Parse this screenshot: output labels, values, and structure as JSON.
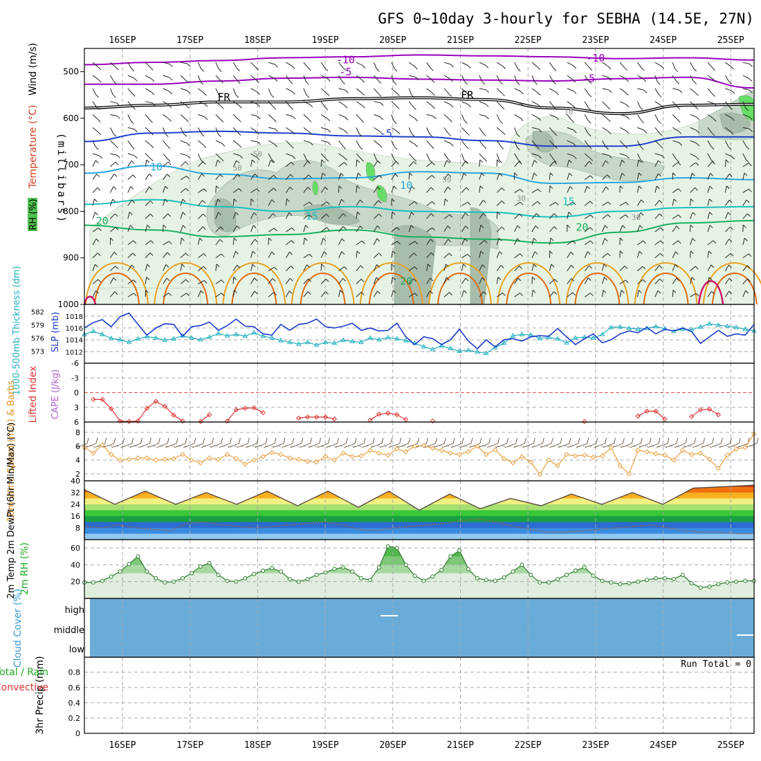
{
  "title": "GFS 0~10day 3-hourly for SEBHA (14.5E, 27N)",
  "colors": {
    "grid": "#a8a8a8",
    "purple": "#9900bb",
    "darkblue": "#1f3fcc",
    "ltblue": "#2aa6e0",
    "teal": "#18c0c0",
    "green": "#18b060",
    "orange": "#e8a020",
    "dkorange": "#e06a10",
    "magenta": "#d0106a",
    "rh_light": "#e6f3e4",
    "rh_mid": "#c8d8c8",
    "rh_dark": "#a8bcaa",
    "rh_bright": "#66dd66",
    "slp": "#1a3acc",
    "thick": "#20b0c0",
    "li": "#dd3333",
    "wind": "#e8a040",
    "barb": "#333333",
    "cloud": "#6aacd8",
    "rh2m": "#44aa44",
    "precip_total": "#22aa22"
  },
  "chart_data": [
    {
      "panel": "upper-air",
      "type": "contour",
      "title": "GFS 0~10day 3-hourly for SEBHA (14.5E, 27N)",
      "x_dates": [
        "16SEP",
        "17SEP",
        "18SEP",
        "19SEP",
        "20SEP",
        "21SEP",
        "22SEP",
        "23SEP",
        "24SEP",
        "25SEP"
      ],
      "ylabel": "(millibars)",
      "side_labels": [
        "Wind (m/s)",
        "Temperature (°C)",
        "RH (%)"
      ],
      "ylim": [
        1000,
        450
      ],
      "y_ticks": [
        500,
        600,
        700,
        800,
        900,
        1000
      ],
      "contour_labels": [
        {
          "text": "-10",
          "day": 3.3,
          "p": 482,
          "color": "purple"
        },
        {
          "text": "-10",
          "day": 7.0,
          "p": 478,
          "color": "purple"
        },
        {
          "text": "-5",
          "day": 3.3,
          "p": 508,
          "color": "purple"
        },
        {
          "text": "-5",
          "day": 6.9,
          "p": 522,
          "color": "purple"
        },
        {
          "text": "FR",
          "day": 1.5,
          "p": 562,
          "color": "black"
        },
        {
          "text": "FR",
          "day": 5.1,
          "p": 558,
          "color": "black"
        },
        {
          "text": "10",
          "day": 6.6,
          "p": 593,
          "color": "grey"
        },
        {
          "text": "-5",
          "day": 3.9,
          "p": 640,
          "color": "darkblue"
        },
        {
          "text": "10",
          "day": 0.5,
          "p": 712,
          "color": "ltblue"
        },
        {
          "text": "10",
          "day": 4.2,
          "p": 752,
          "color": "ltblue"
        },
        {
          "text": "50",
          "day": 2.0,
          "p": 683,
          "color": "grey"
        },
        {
          "text": "50",
          "day": 1.7,
          "p": 712,
          "color": "grey"
        },
        {
          "text": "50",
          "day": 4.8,
          "p": 738,
          "color": "grey"
        },
        {
          "text": "30",
          "day": 5.9,
          "p": 778,
          "color": "grey"
        },
        {
          "text": "30",
          "day": 7.6,
          "p": 819,
          "color": "grey"
        },
        {
          "text": "15",
          "day": 2.8,
          "p": 818,
          "color": "teal"
        },
        {
          "text": "15",
          "day": 6.6,
          "p": 787,
          "color": "teal"
        },
        {
          "text": "20",
          "day": -0.3,
          "p": 828,
          "color": "green"
        },
        {
          "text": "20",
          "day": 6.8,
          "p": 842,
          "color": "green"
        },
        {
          "text": "20",
          "day": 4.2,
          "p": 958,
          "color": "green"
        }
      ],
      "isotherms": [
        {
          "label": "-10",
          "color": "purple",
          "p": [
            485,
            480,
            476,
            470,
            468,
            464,
            466,
            468,
            472,
            470,
            475
          ]
        },
        {
          "label": "-5",
          "color": "purple",
          "p": [
            527,
            527,
            520,
            514,
            512,
            516,
            518,
            520,
            515,
            512,
            535
          ]
        },
        {
          "label": "FR",
          "color": "black",
          "p": [
            578,
            572,
            565,
            565,
            558,
            556,
            560,
            578,
            590,
            572,
            570
          ]
        },
        {
          "label": "-5",
          "color": "darkblue",
          "p": [
            650,
            632,
            628,
            632,
            638,
            640,
            648,
            660,
            660,
            640,
            640
          ]
        },
        {
          "label": "10",
          "color": "ltblue",
          "p": [
            718,
            702,
            720,
            730,
            728,
            715,
            718,
            740,
            738,
            728,
            732
          ]
        },
        {
          "label": "15",
          "color": "teal",
          "p": [
            785,
            775,
            790,
            800,
            790,
            800,
            802,
            812,
            800,
            792,
            790
          ]
        },
        {
          "label": "20",
          "color": "green",
          "p": [
            830,
            840,
            855,
            850,
            840,
            855,
            860,
            868,
            845,
            825,
            820
          ]
        }
      ]
    },
    {
      "panel": "slp-thickness",
      "type": "line",
      "ylabel": "1000-500mb Thickness (dm)",
      "ylabel2": "SLP (mb)",
      "y_ticks_thickness": [
        "582",
        "579",
        "576",
        "573"
      ],
      "y_ticks_slp": [
        "1018",
        "1016",
        "1014",
        "1012"
      ],
      "series": [
        {
          "name": "SLP",
          "values": [
            1016.0,
            1016.9,
            1017.4,
            1016.2,
            1017.9,
            1018.5,
            1016.6,
            1014.8,
            1016.0,
            1016.7,
            1016.6,
            1014.6,
            1016.2,
            1016.4,
            1017.0,
            1015.6,
            1016.4,
            1017.5,
            1016.3,
            1016.2,
            1015.0,
            1014.8,
            1016.6,
            1015.6,
            1016.6,
            1016.8,
            1017.5,
            1016.2,
            1016.0,
            1016.3,
            1016.8,
            1015.6,
            1016.0,
            1015.5,
            1015.6,
            1016.8,
            1014.5,
            1013.2,
            1014.5,
            1014.2,
            1013.2,
            1014.0,
            1015.8,
            1013.8,
            1012.5,
            1014.0,
            1012.8,
            1014.0,
            1014.2,
            1013.8,
            1014.5,
            1014.7,
            1014.6,
            1015.9,
            1014.5,
            1013.2,
            1014.2,
            1015.0,
            1013.5,
            1014.0,
            1015.0,
            1015.5,
            1015.2,
            1016.1,
            1015.0,
            1015.8,
            1015.5,
            1016.0,
            1015.4,
            1013.4,
            1014.5,
            1015.6,
            1014.6,
            1015.0,
            1014.8,
            1016.6
          ]
        },
        {
          "name": "Thickness",
          "values": [
            576.8,
            577.5,
            576.8,
            575.9,
            575.6,
            575.0,
            575.8,
            576.3,
            576.0,
            575.5,
            575.8,
            576.5,
            576.0,
            575.6,
            576.2,
            577.0,
            576.5,
            576.8,
            576.4,
            577.2,
            576.4,
            576.0,
            575.4,
            575.0,
            574.6,
            575.0,
            574.4,
            575.0,
            574.8,
            575.5,
            575.2,
            575.0,
            576.0,
            575.6,
            576.1,
            575.8,
            575.4,
            574.8,
            574.0,
            573.4,
            574.2,
            573.6,
            573.0,
            573.2,
            572.8,
            572.5,
            573.8,
            574.8,
            576.5,
            576.8,
            576.7,
            575.9,
            576.1,
            575.8,
            574.9,
            576.0,
            576.2,
            576.0,
            576.8,
            578.4,
            578.5,
            578.2,
            578.0,
            578.2,
            578.6,
            578.1,
            577.5,
            578.0,
            577.9,
            578.5,
            579.2,
            578.9,
            578.7,
            578.4,
            578.0,
            577.6
          ]
        }
      ]
    },
    {
      "panel": "lifted-index",
      "type": "line",
      "ylabel": "Lifted Index",
      "ylabel2": "CAPE (J/kg)",
      "y_ticks": [
        "-6",
        "-3",
        "0",
        "3",
        "6"
      ],
      "ylim": [
        -6,
        6
      ],
      "series": [
        {
          "name": "Lifted Index",
          "values": [
            null,
            1.4,
            1.4,
            3.3,
            5.8,
            5.9,
            5.8,
            3.2,
            1.8,
            2.8,
            4.6,
            5.8,
            6.0,
            5.9,
            4.5,
            6.2,
            5.8,
            3.5,
            3.2,
            3.1,
            4.1,
            6.0,
            6.0,
            6.0,
            5.2,
            5.0,
            5.0,
            5.0,
            5.4,
            6.0,
            6.0,
            6.0,
            5.6,
            4.4,
            4.2,
            4.5,
            5.5,
            6.0,
            6.0,
            5.8,
            6.0,
            6.0,
            6.0,
            6.0,
            6.0,
            6.0,
            6.0,
            6.0,
            6.0,
            6.0,
            6.0,
            6.0,
            6.0,
            6.0,
            6.0,
            6.0,
            5.9,
            6.0,
            6.0,
            6.0,
            6.0,
            6.0,
            4.8,
            3.8,
            3.8,
            5.4,
            6.0,
            6.0,
            4.9,
            3.5,
            3.4,
            4.5,
            6.0,
            6.0,
            6.0,
            6.0
          ]
        }
      ]
    },
    {
      "panel": "10m-wind",
      "type": "line",
      "ylabel": "10m Wind Speed (m/s) & Barbs",
      "y_ticks": [
        "2",
        "4",
        "6",
        "8"
      ],
      "ylim": [
        2,
        9
      ],
      "series": [
        {
          "name": "Speed",
          "values": [
            5.8,
            5.0,
            6.2,
            4.8,
            4.0,
            4.1,
            4.3,
            4.3,
            4.0,
            4.1,
            4.2,
            4.8,
            4.0,
            3.6,
            4.3,
            4.1,
            4.8,
            4.2,
            3.4,
            4.0,
            4.5,
            5.1,
            4.8,
            4.3,
            4.1,
            3.8,
            3.7,
            4.5,
            4.0,
            5.0,
            4.5,
            4.6,
            5.4,
            5.0,
            4.7,
            5.6,
            5.2,
            6.0,
            6.1,
            5.7,
            5.4,
            5.0,
            4.8,
            5.2,
            6.0,
            4.8,
            5.5,
            4.2,
            3.6,
            4.5,
            3.7,
            1.9,
            4.0,
            3.2,
            4.8,
            4.6,
            4.7,
            4.4,
            4.6,
            5.8,
            3.2,
            2.0,
            5.4,
            5.2,
            4.9,
            4.7,
            4.0,
            5.4,
            4.8,
            5.0,
            4.1,
            2.8,
            4.7,
            5.6,
            5.8,
            7.8
          ]
        }
      ]
    },
    {
      "panel": "2m-temp",
      "type": "area",
      "ylabel": "2m Temp 2m DewPt (6hr Min/Max) (°C)",
      "y_ticks": [
        "8",
        "16",
        "24",
        "32",
        "40"
      ],
      "ylim": [
        0,
        40
      ],
      "series": [
        {
          "name": "2m Temp (max per day)",
          "values": [
            34,
            33,
            32,
            33,
            33,
            33,
            31,
            28,
            31,
            32,
            35,
            37
          ]
        },
        {
          "name": "2m Temp (min per day)",
          "values": [
            24,
            24,
            24,
            23,
            22,
            20,
            21,
            23,
            24,
            24
          ]
        },
        {
          "name": "2m DewPt",
          "values": [
            9,
            8,
            10,
            8,
            7,
            6,
            11,
            12,
            10,
            9,
            8,
            9,
            10,
            11,
            12,
            10,
            7,
            6,
            8,
            9,
            10,
            11,
            13,
            14,
            12,
            9,
            7,
            5,
            5,
            6,
            7,
            8,
            9,
            10,
            8,
            6,
            5,
            5,
            4,
            4
          ]
        }
      ]
    },
    {
      "panel": "2m-rh",
      "type": "area",
      "ylabel": "2m RH (%)",
      "y_ticks": [
        "20",
        "40",
        "60"
      ],
      "ylim": [
        0,
        70
      ],
      "series": [
        {
          "name": "2m RH",
          "values": [
            19,
            19,
            21,
            26,
            32,
            41,
            50,
            32,
            24,
            19,
            20,
            24,
            30,
            38,
            42,
            28,
            21,
            20,
            24,
            29,
            33,
            36,
            32,
            23,
            20,
            23,
            28,
            31,
            35,
            37,
            32,
            24,
            22,
            37,
            62,
            60,
            40,
            27,
            21,
            26,
            34,
            50,
            57,
            35,
            24,
            22,
            21,
            25,
            32,
            40,
            28,
            19,
            19,
            23,
            28,
            33,
            37,
            27,
            21,
            19,
            17,
            18,
            20,
            22,
            24,
            24,
            23,
            28,
            18,
            13,
            14,
            17,
            19,
            20,
            21,
            21
          ]
        }
      ]
    },
    {
      "panel": "cloud-cover",
      "type": "heatmap",
      "ylabel": "Cloud Cover (%)",
      "y_ticks": [
        "high",
        "middle",
        "low"
      ]
    },
    {
      "panel": "precip",
      "type": "bar",
      "ylabel": "3hr Precip (mm)",
      "side_labels": [
        "Total / Rain",
        "Convective"
      ],
      "y_ticks": [
        "0",
        "0.2",
        "0.4",
        "0.6",
        "0.8"
      ],
      "ylim": [
        0,
        1
      ],
      "annotation": "Run Total = 0",
      "values": []
    }
  ]
}
